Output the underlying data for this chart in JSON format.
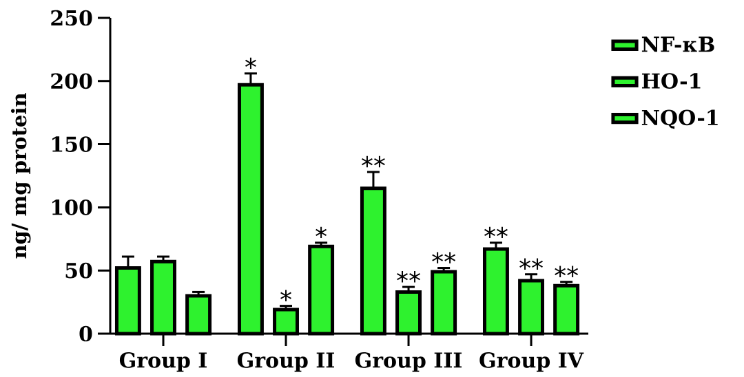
{
  "chart_data": {
    "type": "bar",
    "categories": [
      "Group I",
      "Group II",
      "Group III",
      "Group IV"
    ],
    "ylabel": "ng/ mg protein",
    "ylim": [
      0,
      250
    ],
    "yticks": [
      0,
      50,
      100,
      150,
      200,
      250
    ],
    "legend": "top right",
    "series": [
      {
        "name": "NF-κB",
        "color": "#2ef22e",
        "values": [
          52,
          197,
          115,
          67
        ],
        "errors": [
          9,
          9,
          13,
          5
        ],
        "value_labels": [
          null,
          "*",
          "**",
          "**"
        ]
      },
      {
        "name": "HO-1",
        "color": "#2ef22e",
        "values": [
          57,
          19,
          33,
          42
        ],
        "errors": [
          4,
          3,
          4,
          5
        ],
        "value_labels": [
          null,
          "*",
          "**",
          "**"
        ]
      },
      {
        "name": "NQO-1",
        "color": "#2ef22e",
        "values": [
          30,
          69,
          49,
          38
        ],
        "errors": [
          3,
          3,
          3,
          3
        ],
        "value_labels": [
          null,
          "*",
          "**",
          "**"
        ]
      }
    ]
  }
}
